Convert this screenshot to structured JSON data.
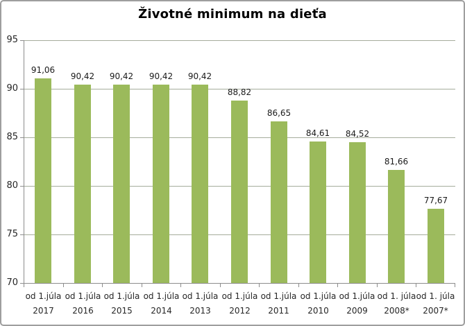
{
  "chart_data": {
    "type": "bar",
    "title": "Životné minimum na dieťa",
    "categories": [
      {
        "line1": "od 1.júla",
        "line2": "2017"
      },
      {
        "line1": "od 1.júla",
        "line2": "2016"
      },
      {
        "line1": "od 1.júla",
        "line2": "2015"
      },
      {
        "line1": "od 1.júla",
        "line2": "2014"
      },
      {
        "line1": "od 1.júla",
        "line2": "2013"
      },
      {
        "line1": "od 1.júla",
        "line2": "2012"
      },
      {
        "line1": "od 1.júla",
        "line2": "2011"
      },
      {
        "line1": "od 1.júla",
        "line2": "2010"
      },
      {
        "line1": "od 1.júla",
        "line2": "2009"
      },
      {
        "line1": "od 1. júla",
        "line2": "2008*"
      },
      {
        "line1": "od 1. júla",
        "line2": "2007*"
      }
    ],
    "values": [
      91.06,
      90.42,
      90.42,
      90.42,
      90.42,
      88.82,
      86.65,
      84.61,
      84.52,
      81.66,
      77.67
    ],
    "value_labels": [
      "91,06",
      "90,42",
      "90,42",
      "90,42",
      "90,42",
      "88,82",
      "86,65",
      "84,61",
      "84,52",
      "81,66",
      "77,67"
    ],
    "xlabel": "",
    "ylabel": "",
    "ylim": [
      70,
      95
    ],
    "yticks": [
      95,
      90,
      85,
      80,
      75,
      70
    ],
    "ytick_labels": [
      "95",
      "90",
      "85",
      "80",
      "75",
      "70"
    ],
    "grid": true,
    "legend": "none",
    "colors": {
      "bar": "#9bba5b",
      "gridline": "#a5ac9b",
      "axis": "#8c8c8c",
      "title": "#000000",
      "value_label": "#1a1a1a",
      "tick_label": "#262626",
      "border": "#9e9e9e",
      "background": "#ffffff"
    }
  }
}
